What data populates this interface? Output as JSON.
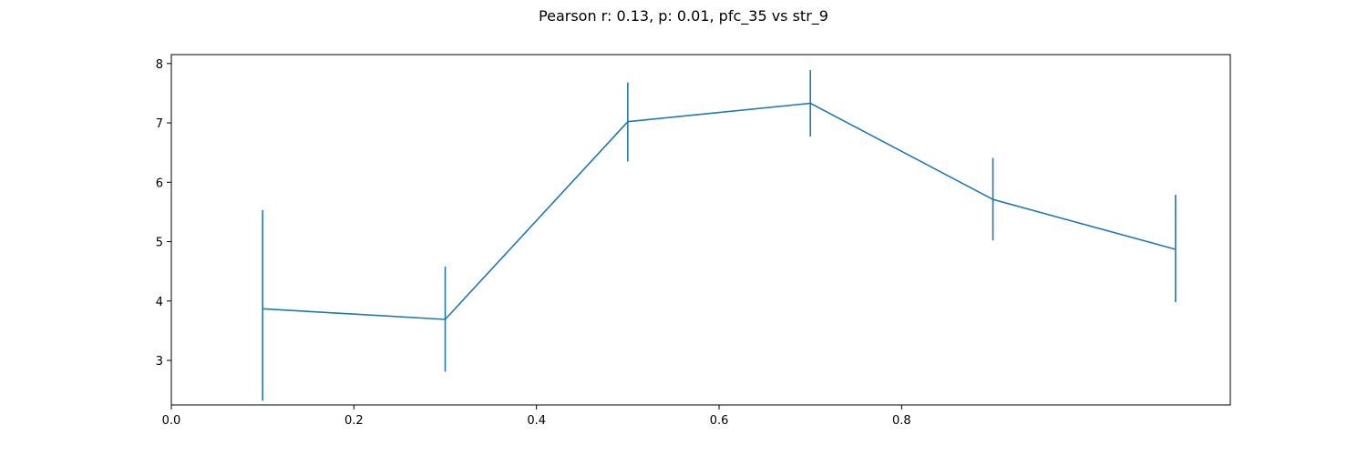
{
  "chart_data": {
    "type": "line",
    "title": "Pearson r: 0.13, p: 0.01, pfc_35 vs str_9",
    "xlabel": "",
    "ylabel": "",
    "xlim": [
      0.0,
      1.16
    ],
    "ylim": [
      2.25,
      8.15
    ],
    "x_ticks": [
      0.0,
      0.2,
      0.4,
      0.6,
      0.8
    ],
    "x_tick_labels": [
      "0.0",
      "0.2",
      "0.4",
      "0.6",
      "0.8"
    ],
    "y_ticks": [
      3,
      4,
      5,
      6,
      7,
      8
    ],
    "y_tick_labels": [
      "3",
      "4",
      "5",
      "6",
      "7",
      "8"
    ],
    "grid": false,
    "legend": "none",
    "series": [
      {
        "color": "#1f77b4",
        "x": [
          0.1,
          0.3,
          0.5,
          0.7,
          0.9,
          1.1
        ],
        "y": [
          3.87,
          3.69,
          7.02,
          7.33,
          5.71,
          4.87
        ],
        "error_low": [
          2.32,
          2.81,
          6.35,
          6.77,
          5.02,
          3.98
        ],
        "error_high": [
          5.53,
          4.58,
          7.68,
          7.89,
          6.41,
          5.79
        ]
      }
    ]
  }
}
